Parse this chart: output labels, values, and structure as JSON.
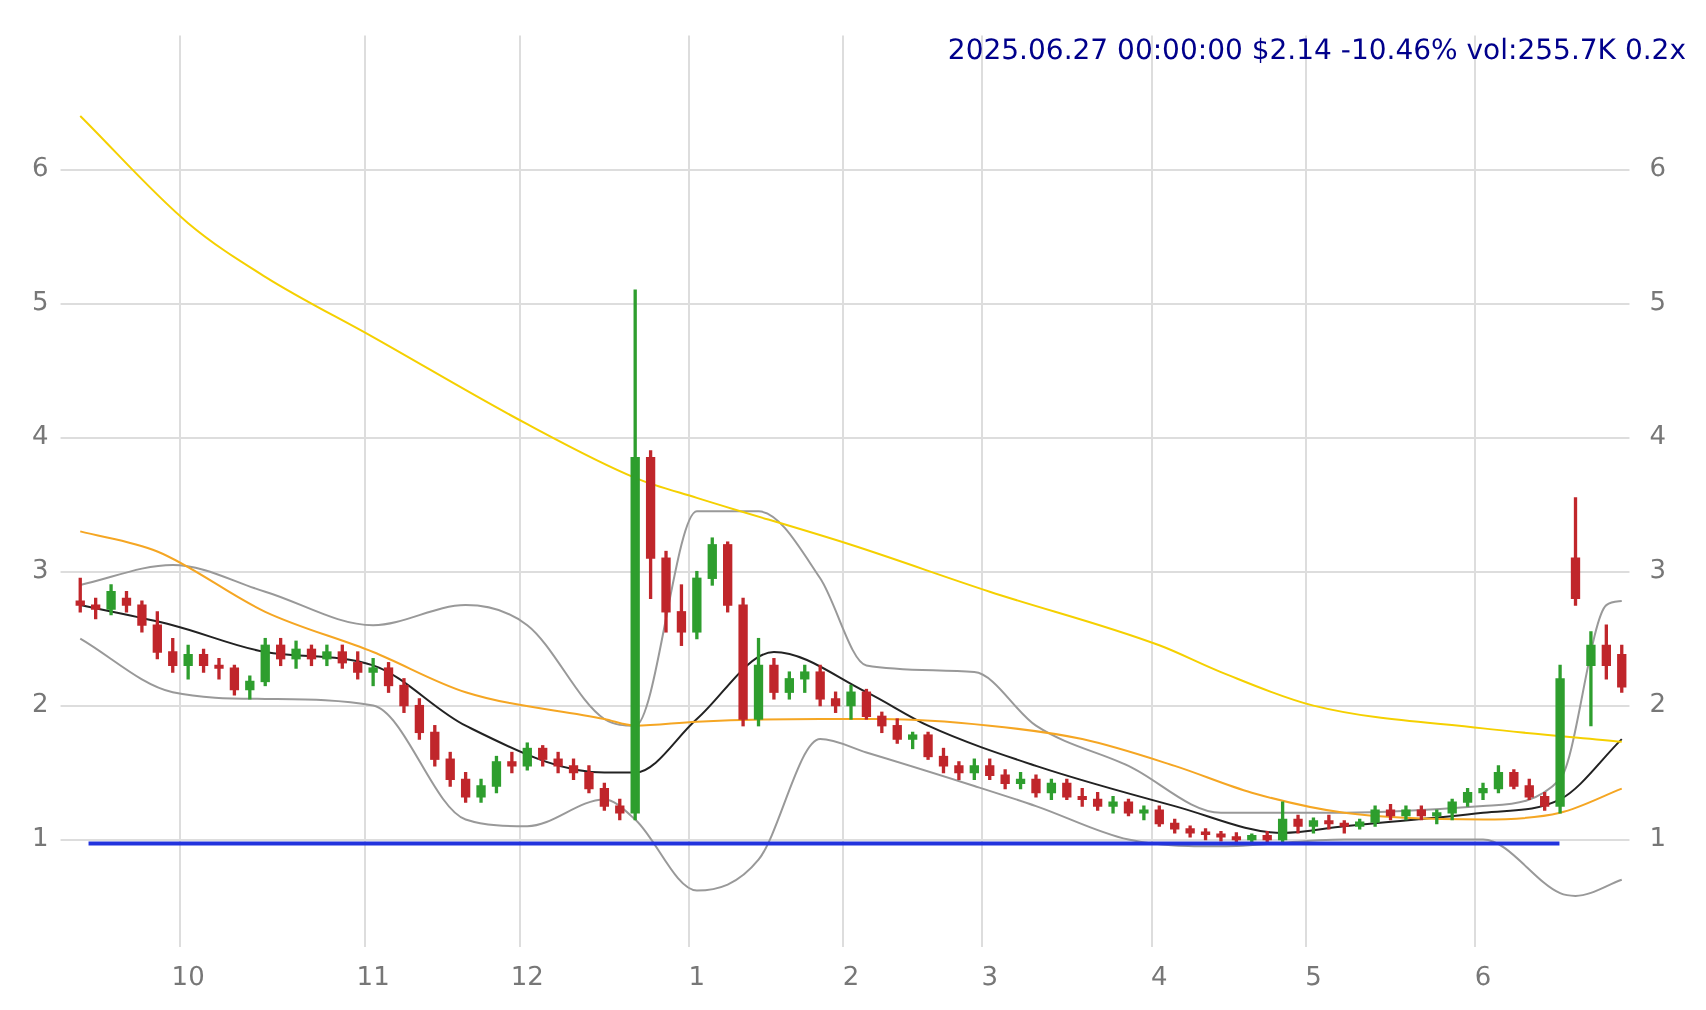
{
  "chart_data": {
    "type": "candlestick",
    "title": "2025.06.27 00:00:00 $2.14 -10.46% vol:255.7K 0.2x",
    "categories": [
      null,
      null,
      null,
      null,
      null,
      null,
      null,
      "10",
      null,
      null,
      null,
      null,
      null,
      null,
      null,
      null,
      null,
      null,
      null,
      "11",
      null,
      null,
      null,
      null,
      null,
      null,
      null,
      null,
      null,
      "12",
      null,
      null,
      null,
      null,
      null,
      null,
      null,
      null,
      null,
      null,
      "1",
      null,
      null,
      null,
      null,
      null,
      null,
      null,
      null,
      null,
      "2",
      null,
      null,
      null,
      null,
      null,
      null,
      null,
      null,
      "3",
      null,
      null,
      null,
      null,
      null,
      null,
      null,
      null,
      null,
      null,
      "4",
      null,
      null,
      null,
      null,
      null,
      null,
      null,
      null,
      null,
      "5",
      null,
      null,
      null,
      null,
      null,
      null,
      null,
      null,
      null,
      null,
      "6",
      null,
      null,
      null,
      null,
      null,
      null,
      null,
      null,
      null
    ],
    "ohlc": [
      [
        2.78,
        2.95,
        2.7,
        2.75
      ],
      [
        2.75,
        2.8,
        2.65,
        2.72
      ],
      [
        2.72,
        2.9,
        2.68,
        2.85
      ],
      [
        2.8,
        2.85,
        2.7,
        2.75
      ],
      [
        2.75,
        2.78,
        2.55,
        2.6
      ],
      [
        2.6,
        2.7,
        2.35,
        2.4
      ],
      [
        2.4,
        2.5,
        2.25,
        2.3
      ],
      [
        2.3,
        2.45,
        2.2,
        2.38
      ],
      [
        2.38,
        2.42,
        2.25,
        2.3
      ],
      [
        2.3,
        2.35,
        2.2,
        2.28
      ],
      [
        2.28,
        2.3,
        2.08,
        2.12
      ],
      [
        2.12,
        2.22,
        2.05,
        2.18
      ],
      [
        2.18,
        2.5,
        2.15,
        2.45
      ],
      [
        2.45,
        2.5,
        2.3,
        2.35
      ],
      [
        2.35,
        2.48,
        2.28,
        2.42
      ],
      [
        2.42,
        2.45,
        2.3,
        2.35
      ],
      [
        2.35,
        2.45,
        2.3,
        2.4
      ],
      [
        2.4,
        2.45,
        2.28,
        2.32
      ],
      [
        2.32,
        2.4,
        2.2,
        2.25
      ],
      [
        2.25,
        2.35,
        2.15,
        2.28
      ],
      [
        2.28,
        2.32,
        2.1,
        2.15
      ],
      [
        2.15,
        2.2,
        1.95,
        2.0
      ],
      [
        2.0,
        2.05,
        1.75,
        1.8
      ],
      [
        1.8,
        1.85,
        1.55,
        1.6
      ],
      [
        1.6,
        1.65,
        1.4,
        1.45
      ],
      [
        1.45,
        1.5,
        1.28,
        1.32
      ],
      [
        1.32,
        1.45,
        1.28,
        1.4
      ],
      [
        1.4,
        1.62,
        1.35,
        1.58
      ],
      [
        1.58,
        1.65,
        1.5,
        1.55
      ],
      [
        1.55,
        1.72,
        1.52,
        1.68
      ],
      [
        1.68,
        1.7,
        1.55,
        1.6
      ],
      [
        1.6,
        1.65,
        1.5,
        1.55
      ],
      [
        1.55,
        1.6,
        1.45,
        1.5
      ],
      [
        1.5,
        1.55,
        1.35,
        1.38
      ],
      [
        1.38,
        1.42,
        1.22,
        1.25
      ],
      [
        1.25,
        1.3,
        1.15,
        1.2
      ],
      [
        1.2,
        5.1,
        1.15,
        3.85
      ],
      [
        3.85,
        3.9,
        2.8,
        3.1
      ],
      [
        3.1,
        3.15,
        2.55,
        2.7
      ],
      [
        2.7,
        2.9,
        2.45,
        2.55
      ],
      [
        2.55,
        3.0,
        2.5,
        2.95
      ],
      [
        2.95,
        3.25,
        2.9,
        3.2
      ],
      [
        3.2,
        3.22,
        2.7,
        2.75
      ],
      [
        2.75,
        2.8,
        1.85,
        1.9
      ],
      [
        1.9,
        2.5,
        1.85,
        2.3
      ],
      [
        2.3,
        2.35,
        2.05,
        2.1
      ],
      [
        2.1,
        2.25,
        2.05,
        2.2
      ],
      [
        2.2,
        2.3,
        2.1,
        2.25
      ],
      [
        2.25,
        2.3,
        2.0,
        2.05
      ],
      [
        2.05,
        2.1,
        1.95,
        2.0
      ],
      [
        2.0,
        2.15,
        1.9,
        2.1
      ],
      [
        2.1,
        2.12,
        1.9,
        1.92
      ],
      [
        1.92,
        1.95,
        1.8,
        1.85
      ],
      [
        1.85,
        1.9,
        1.72,
        1.75
      ],
      [
        1.75,
        1.8,
        1.68,
        1.78
      ],
      [
        1.78,
        1.8,
        1.6,
        1.62
      ],
      [
        1.62,
        1.68,
        1.5,
        1.55
      ],
      [
        1.55,
        1.58,
        1.45,
        1.5
      ],
      [
        1.5,
        1.6,
        1.45,
        1.55
      ],
      [
        1.55,
        1.6,
        1.45,
        1.48
      ],
      [
        1.48,
        1.52,
        1.38,
        1.42
      ],
      [
        1.42,
        1.5,
        1.38,
        1.45
      ],
      [
        1.45,
        1.48,
        1.32,
        1.35
      ],
      [
        1.35,
        1.45,
        1.3,
        1.42
      ],
      [
        1.42,
        1.45,
        1.3,
        1.32
      ],
      [
        1.32,
        1.38,
        1.25,
        1.3
      ],
      [
        1.3,
        1.35,
        1.22,
        1.25
      ],
      [
        1.25,
        1.32,
        1.2,
        1.28
      ],
      [
        1.28,
        1.3,
        1.18,
        1.2
      ],
      [
        1.2,
        1.25,
        1.15,
        1.22
      ],
      [
        1.22,
        1.25,
        1.1,
        1.12
      ],
      [
        1.12,
        1.15,
        1.05,
        1.08
      ],
      [
        1.08,
        1.1,
        1.02,
        1.05
      ],
      [
        1.05,
        1.08,
        1.0,
        1.04
      ],
      [
        1.04,
        1.06,
        0.99,
        1.02
      ],
      [
        1.02,
        1.05,
        0.98,
        1.0
      ],
      [
        1.0,
        1.04,
        0.97,
        1.03
      ],
      [
        1.03,
        1.06,
        0.98,
        1.0
      ],
      [
        1.0,
        1.28,
        0.98,
        1.15
      ],
      [
        1.15,
        1.18,
        1.05,
        1.1
      ],
      [
        1.1,
        1.16,
        1.05,
        1.14
      ],
      [
        1.14,
        1.18,
        1.08,
        1.12
      ],
      [
        1.12,
        1.14,
        1.05,
        1.1
      ],
      [
        1.1,
        1.15,
        1.08,
        1.13
      ],
      [
        1.13,
        1.25,
        1.1,
        1.22
      ],
      [
        1.22,
        1.26,
        1.15,
        1.18
      ],
      [
        1.18,
        1.25,
        1.15,
        1.22
      ],
      [
        1.22,
        1.25,
        1.15,
        1.18
      ],
      [
        1.18,
        1.22,
        1.12,
        1.2
      ],
      [
        1.2,
        1.3,
        1.15,
        1.28
      ],
      [
        1.28,
        1.38,
        1.25,
        1.35
      ],
      [
        1.35,
        1.42,
        1.3,
        1.38
      ],
      [
        1.38,
        1.55,
        1.35,
        1.5
      ],
      [
        1.5,
        1.52,
        1.38,
        1.4
      ],
      [
        1.4,
        1.45,
        1.3,
        1.32
      ],
      [
        1.32,
        1.35,
        1.22,
        1.25
      ],
      [
        1.25,
        2.3,
        1.2,
        2.2
      ],
      [
        3.1,
        3.55,
        2.75,
        2.8
      ],
      [
        2.3,
        2.55,
        1.85,
        2.45
      ],
      [
        2.45,
        2.6,
        2.2,
        2.3
      ],
      [
        2.38,
        2.45,
        2.1,
        2.14
      ]
    ],
    "colors": [
      "#c0262b",
      "#c0262b",
      "#2e9e2e",
      "#c0262b",
      "#c0262b",
      "#c0262b",
      "#c0262b",
      "#2e9e2e",
      "#c0262b",
      "#c0262b",
      "#c0262b",
      "#2e9e2e",
      "#2e9e2e",
      "#c0262b",
      "#2e9e2e",
      "#c0262b",
      "#2e9e2e",
      "#c0262b",
      "#c0262b",
      "#2e9e2e",
      "#c0262b",
      "#c0262b",
      "#c0262b",
      "#c0262b",
      "#c0262b",
      "#c0262b",
      "#2e9e2e",
      "#2e9e2e",
      "#c0262b",
      "#2e9e2e",
      "#c0262b",
      "#c0262b",
      "#c0262b",
      "#c0262b",
      "#c0262b",
      "#c0262b",
      "#2e9e2e",
      "#c0262b",
      "#c0262b",
      "#c0262b",
      "#2e9e2e",
      "#2e9e2e",
      "#c0262b",
      "#c0262b",
      "#2e9e2e",
      "#c0262b",
      "#2e9e2e",
      "#2e9e2e",
      "#c0262b",
      "#c0262b",
      "#2e9e2e",
      "#c0262b",
      "#c0262b",
      "#c0262b",
      "#2e9e2e",
      "#c0262b",
      "#c0262b",
      "#c0262b",
      "#2e9e2e",
      "#c0262b",
      "#c0262b",
      "#2e9e2e",
      "#c0262b",
      "#2e9e2e",
      "#c0262b",
      "#c0262b",
      "#c0262b",
      "#2e9e2e",
      "#c0262b",
      "#2e9e2e",
      "#c0262b",
      "#c0262b",
      "#c0262b",
      "#c0262b",
      "#c0262b",
      "#c0262b",
      "#2e9e2e",
      "#c0262b",
      "#2e9e2e",
      "#c0262b",
      "#2e9e2e",
      "#c0262b",
      "#c0262b",
      "#2e9e2e",
      "#2e9e2e",
      "#c0262b",
      "#2e9e2e",
      "#c0262b",
      "#2e9e2e",
      "#2e9e2e",
      "#2e9e2e",
      "#2e9e2e",
      "#2e9e2e",
      "#c0262b",
      "#c0262b",
      "#c0262b",
      "#2e9e2e",
      "#c0262b",
      "#2e9e2e",
      "#c0262b",
      "#c0262b"
    ],
    "series": [
      {
        "type": "line",
        "color": "#f5d000",
        "values": [
          6.4,
          null,
          null,
          null,
          null,
          null,
          null,
          5.6,
          null,
          null,
          null,
          null,
          5.2,
          null,
          null,
          null,
          null,
          null,
          null,
          4.75,
          null,
          null,
          null,
          null,
          null,
          null,
          null,
          null,
          null,
          4.1,
          null,
          null,
          null,
          null,
          null,
          null,
          3.7,
          null,
          null,
          null,
          3.55,
          null,
          null,
          null,
          null,
          null,
          null,
          null,
          null,
          null,
          3.2,
          null,
          null,
          null,
          null,
          null,
          null,
          null,
          null,
          2.85,
          null,
          null,
          null,
          null,
          null,
          null,
          null,
          null,
          null,
          null,
          2.45,
          null,
          null,
          null,
          2.25,
          null,
          null,
          null,
          null,
          null,
          2.0,
          null,
          null,
          null,
          null,
          null,
          null,
          null,
          null,
          null,
          null,
          1.83,
          null,
          null,
          null,
          null,
          null,
          null,
          null,
          null,
          1.73
        ]
      },
      {
        "type": "line",
        "color": "#f5a623",
        "values": [
          3.3,
          null,
          null,
          null,
          null,
          3.15,
          null,
          null,
          null,
          null,
          null,
          null,
          2.7,
          null,
          null,
          null,
          null,
          null,
          null,
          2.4,
          null,
          null,
          null,
          null,
          null,
          2.1,
          null,
          null,
          null,
          null,
          null,
          null,
          null,
          null,
          1.9,
          null,
          1.85,
          null,
          null,
          null,
          1.88,
          null,
          null,
          null,
          null,
          null,
          null,
          null,
          1.9,
          null,
          null,
          null,
          1.9,
          null,
          null,
          null,
          null,
          null,
          null,
          1.85,
          null,
          null,
          null,
          null,
          null,
          1.75,
          null,
          null,
          null,
          null,
          null,
          1.55,
          null,
          null,
          null,
          null,
          1.35,
          null,
          null,
          null,
          null,
          null,
          1.2,
          null,
          null,
          null,
          null,
          null,
          null,
          null,
          null,
          1.15,
          null,
          null,
          null,
          null,
          1.2,
          null,
          null,
          null,
          1.38
        ]
      },
      {
        "type": "line",
        "color": "#222222",
        "values": [
          2.75,
          null,
          null,
          null,
          null,
          null,
          2.6,
          null,
          null,
          null,
          null,
          null,
          2.4,
          null,
          null,
          null,
          null,
          null,
          null,
          2.3,
          null,
          null,
          null,
          null,
          null,
          1.85,
          null,
          null,
          null,
          null,
          null,
          null,
          null,
          null,
          1.5,
          null,
          1.5,
          null,
          null,
          null,
          1.9,
          null,
          null,
          null,
          null,
          2.4,
          null,
          null,
          null,
          null,
          null,
          2.1,
          null,
          null,
          null,
          1.85,
          null,
          null,
          null,
          null,
          null,
          null,
          1.55,
          null,
          null,
          null,
          null,
          null,
          null,
          null,
          null,
          1.25,
          null,
          null,
          null,
          null,
          null,
          null,
          1.05,
          null,
          null,
          null,
          1.1,
          null,
          null,
          null,
          null,
          null,
          null,
          null,
          null,
          1.2,
          null,
          null,
          null,
          null,
          1.3,
          null,
          null,
          null,
          1.75
        ]
      },
      {
        "type": "line",
        "color": "#999999",
        "values": [
          2.9,
          null,
          null,
          null,
          null,
          null,
          3.05,
          null,
          null,
          null,
          null,
          null,
          2.85,
          null,
          null,
          null,
          null,
          null,
          null,
          2.6,
          null,
          null,
          null,
          null,
          null,
          2.75,
          null,
          null,
          null,
          2.6,
          null,
          null,
          null,
          null,
          1.9,
          null,
          1.85,
          null,
          null,
          null,
          3.45,
          null,
          null,
          null,
          3.45,
          null,
          null,
          null,
          2.95,
          null,
          null,
          2.3,
          null,
          null,
          null,
          null,
          null,
          null,
          2.25,
          null,
          null,
          null,
          1.85,
          null,
          null,
          null,
          null,
          null,
          1.55,
          null,
          null,
          null,
          null,
          null,
          1.2,
          null,
          null,
          null,
          null,
          null,
          null,
          null,
          1.2,
          null,
          null,
          null,
          null,
          null,
          null,
          null,
          null,
          1.25,
          null,
          null,
          null,
          null,
          1.45,
          null,
          null,
          2.75,
          2.78
        ]
      },
      {
        "type": "line",
        "color": "#999999",
        "values": [
          2.5,
          null,
          null,
          null,
          null,
          null,
          2.1,
          null,
          null,
          null,
          null,
          null,
          2.05,
          null,
          null,
          null,
          null,
          null,
          null,
          2.0,
          null,
          null,
          null,
          null,
          null,
          1.15,
          null,
          null,
          null,
          1.1,
          null,
          null,
          null,
          null,
          1.3,
          null,
          1.15,
          null,
          null,
          null,
          0.62,
          null,
          null,
          null,
          0.85,
          null,
          null,
          null,
          1.75,
          null,
          null,
          1.65,
          null,
          null,
          null,
          null,
          null,
          null,
          1.4,
          null,
          null,
          null,
          1.25,
          null,
          null,
          null,
          null,
          null,
          1.0,
          null,
          null,
          null,
          null,
          null,
          0.95,
          null,
          null,
          null,
          null,
          null,
          null,
          null,
          1.0,
          null,
          null,
          null,
          null,
          null,
          null,
          null,
          null,
          1.0,
          null,
          null,
          null,
          null,
          0.6,
          0.58,
          null,
          null,
          0.7
        ]
      }
    ],
    "ylim": [
      0.2,
      7
    ],
    "yticks": [
      1,
      2,
      3,
      4,
      5,
      6
    ],
    "y2lim": [
      0.2,
      7
    ],
    "y2ticks": [
      1,
      2,
      3,
      4,
      5,
      6
    ],
    "grid": true,
    "marker": "none",
    "line_style": "solid",
    "ref_lines": [
      {
        "axis": "y",
        "value": 0.97,
        "color": "#2233dd"
      }
    ]
  }
}
